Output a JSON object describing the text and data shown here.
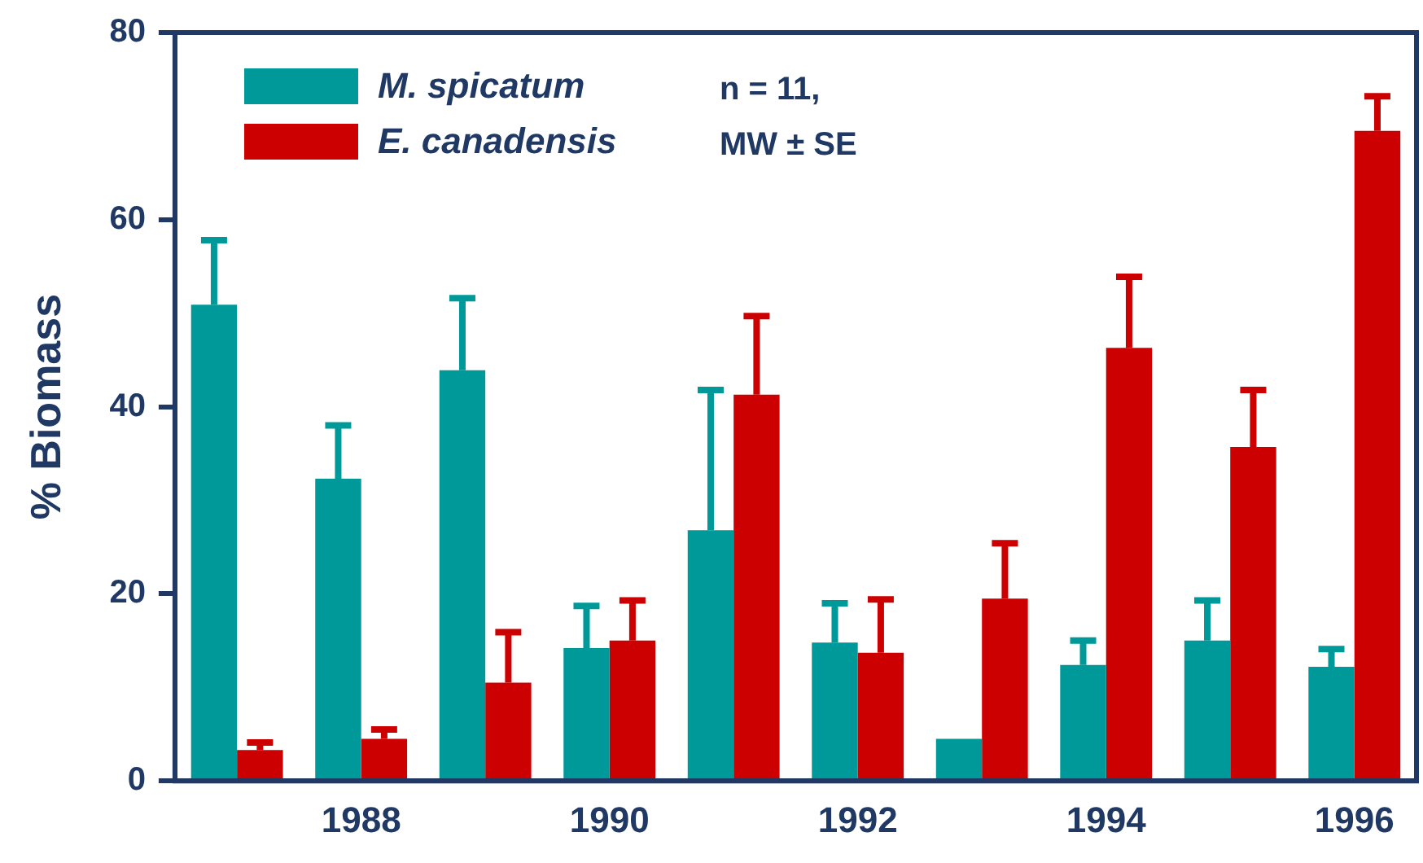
{
  "chart_data": {
    "type": "bar",
    "ylabel": "% Biomass",
    "categories": [
      null,
      "1988",
      null,
      "1990",
      null,
      "1992",
      null,
      "1994",
      null,
      "1996"
    ],
    "series": [
      {
        "name": "M. spicatum",
        "color": "#009999",
        "values": [
          50.9,
          32.3,
          43.9,
          14.2,
          26.8,
          14.8,
          4.5,
          12.4,
          15,
          12.2
        ],
        "errors": [
          [
            50.9,
            57.8
          ],
          [
            32.3,
            38
          ],
          [
            43.9,
            51.6
          ],
          [
            14.2,
            18.7
          ],
          [
            26.8,
            41.8
          ],
          [
            14.8,
            19
          ],
          null,
          [
            12.4,
            15
          ],
          [
            15,
            19.3
          ],
          [
            12.2,
            14.1
          ]
        ]
      },
      {
        "name": "E. canadensis",
        "color": "#cc0000",
        "values": [
          3.3,
          4.5,
          10.5,
          15,
          41.3,
          13.7,
          19.5,
          46.3,
          35.7,
          69.5
        ],
        "errors": [
          [
            3.3,
            4.1
          ],
          [
            4.5,
            5.5
          ],
          [
            10.5,
            15.9
          ],
          [
            15,
            19.3
          ],
          [
            41.3,
            49.7
          ],
          [
            13.7,
            19.4
          ],
          [
            19.5,
            25.4
          ],
          [
            46.3,
            53.9
          ],
          [
            35.7,
            41.8
          ],
          [
            69.5,
            73.2
          ]
        ]
      }
    ],
    "ylim": [
      0,
      80
    ],
    "yticks": [
      0,
      20,
      40,
      60,
      80
    ],
    "grid": false,
    "legend": "top left",
    "annotations": [
      "n = 11,",
      "MW ± SE"
    ]
  }
}
